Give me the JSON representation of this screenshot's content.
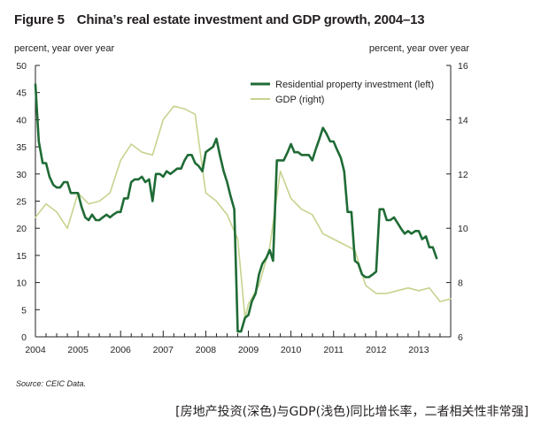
{
  "figure": {
    "label": "Figure 5",
    "title": "China’s real estate investment and GDP growth, 2004–13"
  },
  "source_note": "Source: CEIC Data.",
  "caption": "[房地产投资(深色)与GDP(浅色)同比增长率，二者相关性非常强]",
  "chart_data": {
    "type": "line",
    "y_left_label": "percent, year over year",
    "y_right_label": "percent, year over year",
    "y_left_range": [
      0,
      50
    ],
    "y_right_range": [
      6,
      16
    ],
    "y_left_ticks": [
      "0",
      "5",
      "10",
      "15",
      "20",
      "25",
      "30",
      "35",
      "40",
      "45",
      "50"
    ],
    "y_right_ticks": [
      "6",
      "8",
      "10",
      "12",
      "14",
      "16"
    ],
    "x_range": [
      2004,
      2013.75
    ],
    "x_ticks": [
      "2004",
      "2005",
      "2006",
      "2007",
      "2008",
      "2009",
      "2010",
      "2011",
      "2012",
      "2013"
    ],
    "grid": false,
    "legend_position": "top-right",
    "colors": {
      "residential": "#1f6b35",
      "gdp": "#c5d48e",
      "axis": "#231f20"
    },
    "series": [
      {
        "name": "Residential property investment (left)",
        "axis": "left",
        "color": "#1f6b35",
        "points": [
          [
            2004.0,
            46.5
          ],
          [
            2004.08,
            36.0
          ],
          [
            2004.17,
            32.0
          ],
          [
            2004.25,
            32.0
          ],
          [
            2004.33,
            29.5
          ],
          [
            2004.42,
            28.0
          ],
          [
            2004.5,
            27.5
          ],
          [
            2004.58,
            27.5
          ],
          [
            2004.67,
            28.5
          ],
          [
            2004.75,
            28.5
          ],
          [
            2004.83,
            26.5
          ],
          [
            2004.92,
            26.5
          ],
          [
            2005.0,
            26.5
          ],
          [
            2005.08,
            24.0
          ],
          [
            2005.17,
            22.0
          ],
          [
            2005.25,
            21.5
          ],
          [
            2005.33,
            22.5
          ],
          [
            2005.42,
            21.5
          ],
          [
            2005.5,
            21.5
          ],
          [
            2005.58,
            22.0
          ],
          [
            2005.67,
            22.5
          ],
          [
            2005.75,
            22.0
          ],
          [
            2005.83,
            22.5
          ],
          [
            2005.92,
            23.0
          ],
          [
            2006.0,
            23.0
          ],
          [
            2006.08,
            25.5
          ],
          [
            2006.17,
            25.5
          ],
          [
            2006.25,
            28.5
          ],
          [
            2006.33,
            29.0
          ],
          [
            2006.42,
            29.0
          ],
          [
            2006.5,
            29.5
          ],
          [
            2006.58,
            28.5
          ],
          [
            2006.67,
            29.0
          ],
          [
            2006.75,
            25.0
          ],
          [
            2006.83,
            30.0
          ],
          [
            2006.92,
            30.0
          ],
          [
            2007.0,
            29.5
          ],
          [
            2007.08,
            30.5
          ],
          [
            2007.17,
            30.0
          ],
          [
            2007.25,
            30.5
          ],
          [
            2007.33,
            31.0
          ],
          [
            2007.42,
            31.0
          ],
          [
            2007.5,
            32.5
          ],
          [
            2007.58,
            33.5
          ],
          [
            2007.67,
            33.5
          ],
          [
            2007.75,
            32.0
          ],
          [
            2007.83,
            31.5
          ],
          [
            2007.92,
            30.5
          ],
          [
            2008.0,
            34.0
          ],
          [
            2008.08,
            34.5
          ],
          [
            2008.17,
            35.0
          ],
          [
            2008.25,
            36.5
          ],
          [
            2008.33,
            33.5
          ],
          [
            2008.42,
            30.5
          ],
          [
            2008.5,
            28.5
          ],
          [
            2008.58,
            26.0
          ],
          [
            2008.67,
            23.5
          ],
          [
            2008.75,
            1.0
          ],
          [
            2008.83,
            1.0
          ],
          [
            2008.92,
            3.5
          ],
          [
            2009.0,
            4.0
          ],
          [
            2009.08,
            6.5
          ],
          [
            2009.17,
            8.0
          ],
          [
            2009.25,
            11.5
          ],
          [
            2009.33,
            13.5
          ],
          [
            2009.42,
            14.5
          ],
          [
            2009.5,
            16.0
          ],
          [
            2009.58,
            14.0
          ],
          [
            2009.67,
            32.5
          ],
          [
            2009.75,
            32.5
          ],
          [
            2009.83,
            32.5
          ],
          [
            2009.92,
            34.0
          ],
          [
            2010.0,
            35.5
          ],
          [
            2010.08,
            34.0
          ],
          [
            2010.17,
            34.0
          ],
          [
            2010.25,
            33.5
          ],
          [
            2010.33,
            33.5
          ],
          [
            2010.42,
            33.5
          ],
          [
            2010.5,
            32.5
          ],
          [
            2010.58,
            34.5
          ],
          [
            2010.67,
            36.5
          ],
          [
            2010.75,
            38.5
          ],
          [
            2010.83,
            37.5
          ],
          [
            2010.92,
            36.0
          ],
          [
            2011.0,
            36.0
          ],
          [
            2011.08,
            34.5
          ],
          [
            2011.17,
            33.0
          ],
          [
            2011.25,
            30.5
          ],
          [
            2011.33,
            23.0
          ],
          [
            2011.42,
            23.0
          ],
          [
            2011.5,
            14.0
          ],
          [
            2011.58,
            13.5
          ],
          [
            2011.67,
            11.5
          ],
          [
            2011.75,
            11.0
          ],
          [
            2011.83,
            11.0
          ],
          [
            2011.92,
            11.5
          ],
          [
            2012.0,
            12.0
          ],
          [
            2012.08,
            23.5
          ],
          [
            2012.17,
            23.5
          ],
          [
            2012.25,
            21.5
          ],
          [
            2012.33,
            21.5
          ],
          [
            2012.42,
            22.0
          ],
          [
            2012.5,
            21.0
          ],
          [
            2012.58,
            20.0
          ],
          [
            2012.67,
            19.0
          ],
          [
            2012.75,
            19.5
          ],
          [
            2012.83,
            19.0
          ],
          [
            2012.92,
            19.5
          ],
          [
            2013.0,
            19.5
          ],
          [
            2013.08,
            18.0
          ],
          [
            2013.17,
            18.5
          ],
          [
            2013.25,
            16.5
          ],
          [
            2013.33,
            16.5
          ],
          [
            2013.42,
            14.5
          ]
        ]
      },
      {
        "name": "GDP (right)",
        "axis": "right",
        "color": "#c5d48e",
        "points": [
          [
            2004.0,
            10.4
          ],
          [
            2004.25,
            10.9
          ],
          [
            2004.5,
            10.6
          ],
          [
            2004.75,
            10.0
          ],
          [
            2005.0,
            11.3
          ],
          [
            2005.25,
            10.9
          ],
          [
            2005.5,
            11.0
          ],
          [
            2005.75,
            11.3
          ],
          [
            2006.0,
            12.5
          ],
          [
            2006.25,
            13.1
          ],
          [
            2006.5,
            12.8
          ],
          [
            2006.75,
            12.7
          ],
          [
            2007.0,
            14.0
          ],
          [
            2007.25,
            14.5
          ],
          [
            2007.5,
            14.4
          ],
          [
            2007.75,
            14.2
          ],
          [
            2008.0,
            11.3
          ],
          [
            2008.25,
            11.0
          ],
          [
            2008.5,
            10.5
          ],
          [
            2008.75,
            9.6
          ],
          [
            2008.92,
            6.7
          ],
          [
            2009.0,
            7.2
          ],
          [
            2009.25,
            7.9
          ],
          [
            2009.5,
            9.3
          ],
          [
            2009.75,
            12.1
          ],
          [
            2010.0,
            11.1
          ],
          [
            2010.25,
            10.7
          ],
          [
            2010.5,
            10.5
          ],
          [
            2010.75,
            9.8
          ],
          [
            2011.0,
            9.6
          ],
          [
            2011.25,
            9.4
          ],
          [
            2011.5,
            9.2
          ],
          [
            2011.75,
            7.9
          ],
          [
            2012.0,
            7.6
          ],
          [
            2012.25,
            7.6
          ],
          [
            2012.5,
            7.7
          ],
          [
            2012.75,
            7.8
          ],
          [
            2013.0,
            7.7
          ],
          [
            2013.25,
            7.8
          ],
          [
            2013.5,
            7.3
          ],
          [
            2013.75,
            7.4
          ]
        ]
      }
    ]
  }
}
